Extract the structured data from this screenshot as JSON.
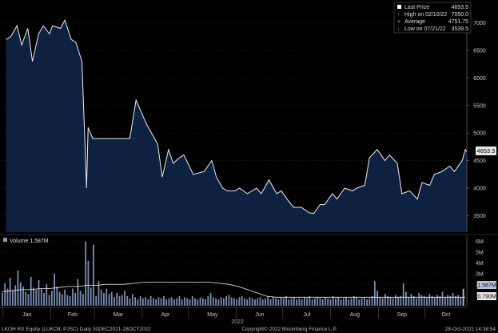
{
  "legend": {
    "last_price_label": "Last Price",
    "last_price_value": "4653.5",
    "high_label": "High on 02/10/22",
    "high_value": "7050.0",
    "average_label": "Average",
    "average_value": "4751.75",
    "low_label": "Low on 07/21/22",
    "low_value": "3539.5"
  },
  "last_price_tag": "4653.5",
  "volume_legend": "Volume 1.587M",
  "volume_tag": "1.587M",
  "volume_avg_tag": "0.790M",
  "footer": {
    "left": "LKOH RX Equity (LUKOIL PJSC)  Daily 30DEC2021-28OCT2022",
    "center": "Copyright© 2022 Bloomberg Finance L.P.",
    "right": "28-Oct-2022 14:38:54"
  },
  "year_label": "2022",
  "colors": {
    "area_fill": "#0e2140",
    "line": "#e8eef6",
    "bar": "#7a8fb4",
    "bar_highlight": "#b7c6e0",
    "background": "#000000",
    "text": "#c8c8c8"
  },
  "chart_data": [
    {
      "type": "area",
      "title": "",
      "ylim": [
        3200,
        7300
      ],
      "yticks": [
        3500,
        4000,
        4500,
        5000,
        5500,
        6000,
        6500,
        7000
      ],
      "xlabels": [
        "Jan",
        "Feb",
        "Mar",
        "Apr",
        "May",
        "Jun",
        "Jul",
        "Aug",
        "Sep",
        "Oct"
      ],
      "x": [
        "2022-01-03",
        "2022-01-06",
        "2022-01-10",
        "2022-01-13",
        "2022-01-17",
        "2022-01-20",
        "2022-01-24",
        "2022-01-27",
        "2022-01-31",
        "2022-02-02",
        "2022-02-07",
        "2022-02-10",
        "2022-02-14",
        "2022-02-17",
        "2022-02-21",
        "2022-02-24",
        "2022-02-25",
        "2022-02-28",
        "2022-03-09",
        "2022-03-21",
        "2022-03-24",
        "2022-03-28",
        "2022-03-31",
        "2022-04-04",
        "2022-04-07",
        "2022-04-11",
        "2022-04-14",
        "2022-04-18",
        "2022-04-21",
        "2022-04-25",
        "2022-04-28",
        "2022-05-04",
        "2022-05-11",
        "2022-05-16",
        "2022-05-19",
        "2022-05-23",
        "2022-05-26",
        "2022-05-31",
        "2022-06-03",
        "2022-06-08",
        "2022-06-14",
        "2022-06-17",
        "2022-06-22",
        "2022-06-27",
        "2022-06-30",
        "2022-07-05",
        "2022-07-08",
        "2022-07-13",
        "2022-07-18",
        "2022-07-21",
        "2022-07-25",
        "2022-07-28",
        "2022-08-02",
        "2022-08-05",
        "2022-08-10",
        "2022-08-15",
        "2022-08-18",
        "2022-08-23",
        "2022-08-26",
        "2022-08-31",
        "2022-09-05",
        "2022-09-08",
        "2022-09-13",
        "2022-09-16",
        "2022-09-21",
        "2022-09-26",
        "2022-09-29",
        "2022-10-04",
        "2022-10-07",
        "2022-10-12",
        "2022-10-17",
        "2022-10-20",
        "2022-10-25",
        "2022-10-27",
        "2022-10-28"
      ],
      "y": [
        6700,
        6750,
        6950,
        6600,
        6900,
        6300,
        6800,
        6950,
        6800,
        6950,
        6900,
        7050,
        6700,
        6650,
        6300,
        4000,
        5100,
        4900,
        4900,
        4900,
        4900,
        5600,
        5400,
        5150,
        5000,
        4800,
        4200,
        4700,
        4450,
        4550,
        4600,
        4250,
        4300,
        4500,
        4200,
        4000,
        3950,
        3950,
        4000,
        3900,
        4000,
        3900,
        4150,
        3900,
        3950,
        3750,
        3650,
        3650,
        3550,
        3540,
        3700,
        3700,
        3900,
        3800,
        4000,
        3950,
        4000,
        4050,
        4550,
        4700,
        4500,
        4600,
        4450,
        3900,
        3950,
        3800,
        4100,
        4050,
        4250,
        4300,
        4400,
        4300,
        4500,
        4700,
        4653.5
      ],
      "series": [
        {
          "name": "Last Price",
          "values": "y"
        }
      ]
    },
    {
      "type": "bar",
      "title": "",
      "ylim": [
        0,
        6500000
      ],
      "yticks": [
        "1M",
        "2M",
        "3M",
        "4M",
        "5M",
        "6M"
      ],
      "series": [
        {
          "name": "Volume",
          "values": [
            1.2,
            2.1,
            1.6,
            2.6,
            1.4,
            1.9,
            3.3,
            2.2,
            1.8,
            1.3,
            1.1,
            2.7,
            1.7,
            1.5,
            2.4,
            1.6,
            1.2,
            2.0,
            1.0,
            1.4,
            3.0,
            1.8,
            1.3,
            1.1,
            1.5,
            1.0,
            0.9,
            1.6,
            1.2,
            2.5,
            1.4,
            1.1,
            6.0,
            4.2,
            1.7,
            5.7,
            0.9,
            2.3,
            1.5,
            1.2,
            1.6,
            1.1,
            1.3,
            0.8,
            1.2,
            0.9,
            1.0,
            1.4,
            0.9,
            0.7,
            1.1,
            0.8,
            0.6,
            0.9,
            0.7,
            0.8,
            0.6,
            0.9,
            0.7,
            0.6,
            0.8,
            0.7,
            0.9,
            0.6,
            0.7,
            0.8,
            0.6,
            0.7,
            0.9,
            0.6,
            0.8,
            0.7,
            0.6,
            0.9,
            0.7,
            0.6,
            0.8,
            0.7,
            0.6,
            0.9,
            1.2,
            0.8,
            0.7,
            0.6,
            0.8,
            0.7,
            0.9,
            1.0,
            0.8,
            0.7,
            0.6,
            0.8,
            0.9,
            0.7,
            0.6,
            0.8,
            0.7,
            0.6,
            0.7,
            0.8,
            0.6,
            0.7,
            0.9,
            0.6,
            0.8,
            0.7,
            0.6,
            0.8,
            0.7,
            0.9,
            0.6,
            0.7,
            0.8,
            0.6,
            0.7,
            0.6,
            0.8,
            0.7,
            0.9,
            0.6,
            0.7,
            0.8,
            0.7,
            0.6,
            0.8,
            0.7,
            0.6,
            0.9,
            0.7,
            0.8,
            0.6,
            0.7,
            0.8,
            0.6,
            0.7,
            0.9,
            0.8,
            0.6,
            0.7,
            0.8,
            0.6,
            0.7,
            0.9,
            2.3,
            1.4,
            0.8,
            0.7,
            1.1,
            0.9,
            0.8,
            0.7,
            1.0,
            0.8,
            0.9,
            2.1,
            1.3,
            0.8,
            1.1,
            0.9,
            0.7,
            1.2,
            1.0,
            0.9,
            0.8,
            1.1,
            0.9,
            0.8,
            1.0,
            0.9,
            1.3,
            0.8,
            1.0,
            0.9,
            1.2,
            0.9,
            1.0,
            0.8,
            1.587
          ]
        },
        {
          "name": "",
          "values": [
            1.3,
            1.4,
            1.5,
            1.5,
            1.6,
            1.6,
            1.7,
            1.8,
            1.8,
            1.9,
            1.9,
            2.0,
            2.0,
            2.0,
            2.1,
            2.2,
            2.2,
            2.2,
            2.2,
            2.2,
            2.2,
            2.2,
            2.2,
            2.1,
            2.0,
            1.8,
            1.5,
            1.2,
            0.9,
            0.8,
            0.8,
            0.8,
            0.8,
            0.8,
            0.8,
            0.8,
            0.8,
            0.8,
            0.8,
            0.8,
            0.8,
            0.8,
            0.8,
            0.8,
            0.8,
            0.8,
            0.8,
            0.8,
            0.8,
            0.8
          ]
        }
      ]
    }
  ]
}
